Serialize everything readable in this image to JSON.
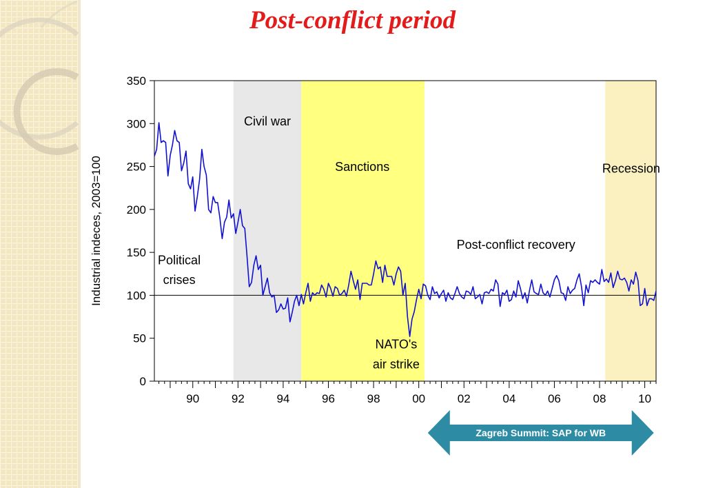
{
  "slide": {
    "title": "Post-conflict period"
  },
  "chart_data": {
    "type": "line",
    "ylabel": "Industrial indeces, 2003=100",
    "ylim": [
      0,
      350
    ],
    "yticks": [
      0,
      50,
      100,
      150,
      200,
      250,
      300,
      350
    ],
    "xlim": [
      1988.3,
      2010.5
    ],
    "xticks": [
      1990,
      1992,
      1994,
      1996,
      1998,
      2000,
      2002,
      2004,
      2006,
      2008,
      2010
    ],
    "xtick_labels": [
      "90",
      "92",
      "94",
      "96",
      "98",
      "00",
      "02",
      "04",
      "06",
      "08",
      "10"
    ],
    "reference_line": 100,
    "periods": [
      {
        "name": "Civil war",
        "start": 1991.8,
        "end": 1994.8,
        "color": "#e8e8e8"
      },
      {
        "name": "Sanctions",
        "start": 1994.8,
        "end": 2000.25,
        "color": "#ffff80"
      },
      {
        "name": "Recession",
        "start": 2008.25,
        "end": 2010.5,
        "color": "#faf0c0"
      }
    ],
    "annotations": [
      {
        "text": "Political",
        "x": 1989.4,
        "y": 136
      },
      {
        "text": "crises",
        "x": 1989.4,
        "y": 113
      },
      {
        "text": "Civil war",
        "x": 1993.3,
        "y": 298
      },
      {
        "text": "Sanctions",
        "x": 1997.5,
        "y": 245
      },
      {
        "text": "Recession",
        "x": 2009.4,
        "y": 243
      },
      {
        "text": "Post-conflict recovery",
        "x": 2004.3,
        "y": 154
      },
      {
        "text": "NATO's",
        "x": 1999.0,
        "y": 38
      },
      {
        "text": "air strike",
        "x": 1999.0,
        "y": 15
      }
    ],
    "series": [
      {
        "color": "#1010d0",
        "points": [
          [
            1988.3,
            262
          ],
          [
            1988.4,
            270
          ],
          [
            1988.5,
            301
          ],
          [
            1988.6,
            278
          ],
          [
            1988.7,
            280
          ],
          [
            1988.8,
            278
          ],
          [
            1988.9,
            239
          ],
          [
            1989.0,
            263
          ],
          [
            1989.1,
            275
          ],
          [
            1989.2,
            292
          ],
          [
            1989.3,
            280
          ],
          [
            1989.4,
            278
          ],
          [
            1989.5,
            245
          ],
          [
            1989.6,
            254
          ],
          [
            1989.7,
            268
          ],
          [
            1989.8,
            230
          ],
          [
            1989.9,
            224
          ],
          [
            1990.0,
            238
          ],
          [
            1990.1,
            198
          ],
          [
            1990.2,
            215
          ],
          [
            1990.3,
            235
          ],
          [
            1990.4,
            270
          ],
          [
            1990.5,
            250
          ],
          [
            1990.6,
            240
          ],
          [
            1990.7,
            200
          ],
          [
            1990.8,
            196
          ],
          [
            1990.9,
            215
          ],
          [
            1991.0,
            208
          ],
          [
            1991.1,
            208
          ],
          [
            1991.2,
            190
          ],
          [
            1991.3,
            166
          ],
          [
            1991.4,
            185
          ],
          [
            1991.5,
            191
          ],
          [
            1991.6,
            211
          ],
          [
            1991.7,
            190
          ],
          [
            1991.8,
            195
          ],
          [
            1991.9,
            172
          ],
          [
            1992.0,
            185
          ],
          [
            1992.1,
            200
          ],
          [
            1992.2,
            181
          ],
          [
            1992.3,
            178
          ],
          [
            1992.4,
            145
          ],
          [
            1992.5,
            110
          ],
          [
            1992.6,
            115
          ],
          [
            1992.7,
            135
          ],
          [
            1992.8,
            146
          ],
          [
            1992.9,
            130
          ],
          [
            1993.0,
            135
          ],
          [
            1993.1,
            100
          ],
          [
            1993.2,
            110
          ],
          [
            1993.3,
            120
          ],
          [
            1993.4,
            103
          ],
          [
            1993.5,
            98
          ],
          [
            1993.6,
            100
          ],
          [
            1993.7,
            80
          ],
          [
            1993.8,
            83
          ],
          [
            1993.9,
            90
          ],
          [
            1994.0,
            84
          ],
          [
            1994.1,
            85
          ],
          [
            1994.2,
            97
          ],
          [
            1994.3,
            69
          ],
          [
            1994.4,
            80
          ],
          [
            1994.5,
            93
          ],
          [
            1994.6,
            100
          ],
          [
            1994.7,
            88
          ],
          [
            1994.8,
            101
          ],
          [
            1994.9,
            90
          ],
          [
            1995.0,
            103
          ],
          [
            1995.1,
            114
          ],
          [
            1995.2,
            93
          ],
          [
            1995.3,
            103
          ],
          [
            1995.4,
            100
          ],
          [
            1995.5,
            103
          ],
          [
            1995.6,
            102
          ],
          [
            1995.7,
            112
          ],
          [
            1995.8,
            107
          ],
          [
            1995.9,
            98
          ],
          [
            1996.0,
            114
          ],
          [
            1996.1,
            108
          ],
          [
            1996.2,
            99
          ],
          [
            1996.3,
            110
          ],
          [
            1996.4,
            108
          ],
          [
            1996.5,
            100
          ],
          [
            1996.6,
            102
          ],
          [
            1996.7,
            106
          ],
          [
            1996.8,
            99
          ],
          [
            1996.9,
            112
          ],
          [
            1997.0,
            128
          ],
          [
            1997.1,
            117
          ],
          [
            1997.2,
            107
          ],
          [
            1997.3,
            118
          ],
          [
            1997.4,
            95
          ],
          [
            1997.5,
            114
          ],
          [
            1997.6,
            114
          ],
          [
            1997.7,
            114
          ],
          [
            1997.8,
            112
          ],
          [
            1997.9,
            112
          ],
          [
            1998.0,
            125
          ],
          [
            1998.1,
            140
          ],
          [
            1998.2,
            131
          ],
          [
            1998.3,
            133
          ],
          [
            1998.4,
            115
          ],
          [
            1998.5,
            135
          ],
          [
            1998.6,
            122
          ],
          [
            1998.7,
            122
          ],
          [
            1998.8,
            122
          ],
          [
            1998.9,
            112
          ],
          [
            1999.0,
            125
          ],
          [
            1999.1,
            133
          ],
          [
            1999.2,
            128
          ],
          [
            1999.3,
            100
          ],
          [
            1999.4,
            114
          ],
          [
            1999.5,
            75
          ],
          [
            1999.6,
            52
          ],
          [
            1999.7,
            72
          ],
          [
            1999.8,
            81
          ],
          [
            1999.9,
            95
          ],
          [
            2000.0,
            107
          ],
          [
            2000.1,
            96
          ],
          [
            2000.2,
            113
          ],
          [
            2000.3,
            111
          ],
          [
            2000.4,
            100
          ],
          [
            2000.5,
            95
          ],
          [
            2000.6,
            110
          ],
          [
            2000.7,
            102
          ],
          [
            2000.8,
            104
          ],
          [
            2000.9,
            97
          ],
          [
            2001.0,
            102
          ],
          [
            2001.1,
            106
          ],
          [
            2001.2,
            93
          ],
          [
            2001.3,
            103
          ],
          [
            2001.4,
            97
          ],
          [
            2001.5,
            95
          ],
          [
            2001.6,
            102
          ],
          [
            2001.7,
            110
          ],
          [
            2001.8,
            102
          ],
          [
            2001.9,
            98
          ],
          [
            2002.0,
            96
          ],
          [
            2002.1,
            105
          ],
          [
            2002.2,
            104
          ],
          [
            2002.3,
            101
          ],
          [
            2002.4,
            110
          ],
          [
            2002.5,
            96
          ],
          [
            2002.6,
            98
          ],
          [
            2002.7,
            101
          ],
          [
            2002.8,
            90
          ],
          [
            2002.9,
            103
          ],
          [
            2003.0,
            104
          ],
          [
            2003.1,
            102
          ],
          [
            2003.2,
            107
          ],
          [
            2003.3,
            105
          ],
          [
            2003.4,
            118
          ],
          [
            2003.5,
            113
          ],
          [
            2003.6,
            87
          ],
          [
            2003.7,
            103
          ],
          [
            2003.8,
            101
          ],
          [
            2003.9,
            106
          ],
          [
            2004.0,
            93
          ],
          [
            2004.1,
            95
          ],
          [
            2004.2,
            105
          ],
          [
            2004.3,
            98
          ],
          [
            2004.4,
            117
          ],
          [
            2004.5,
            108
          ],
          [
            2004.6,
            96
          ],
          [
            2004.7,
            103
          ],
          [
            2004.8,
            91
          ],
          [
            2004.9,
            106
          ],
          [
            2005.0,
            118
          ],
          [
            2005.1,
            104
          ],
          [
            2005.2,
            102
          ],
          [
            2005.3,
            101
          ],
          [
            2005.4,
            113
          ],
          [
            2005.5,
            103
          ],
          [
            2005.6,
            100
          ],
          [
            2005.7,
            105
          ],
          [
            2005.8,
            98
          ],
          [
            2005.9,
            108
          ],
          [
            2006.0,
            118
          ],
          [
            2006.1,
            123
          ],
          [
            2006.2,
            117
          ],
          [
            2006.3,
            103
          ],
          [
            2006.4,
            102
          ],
          [
            2006.5,
            94
          ],
          [
            2006.6,
            110
          ],
          [
            2006.7,
            102
          ],
          [
            2006.8,
            106
          ],
          [
            2006.9,
            108
          ],
          [
            2007.0,
            118
          ],
          [
            2007.1,
            125
          ],
          [
            2007.2,
            110
          ],
          [
            2007.3,
            88
          ],
          [
            2007.4,
            112
          ],
          [
            2007.5,
            103
          ],
          [
            2007.6,
            117
          ],
          [
            2007.7,
            115
          ],
          [
            2007.8,
            118
          ],
          [
            2007.9,
            115
          ],
          [
            2008.0,
            113
          ],
          [
            2008.1,
            130
          ],
          [
            2008.2,
            116
          ],
          [
            2008.3,
            119
          ],
          [
            2008.4,
            115
          ],
          [
            2008.5,
            126
          ],
          [
            2008.6,
            109
          ],
          [
            2008.7,
            117
          ],
          [
            2008.8,
            128
          ],
          [
            2008.9,
            119
          ],
          [
            2009.0,
            118
          ],
          [
            2009.1,
            120
          ],
          [
            2009.2,
            115
          ],
          [
            2009.3,
            105
          ],
          [
            2009.4,
            118
          ],
          [
            2009.5,
            113
          ],
          [
            2009.6,
            127
          ],
          [
            2009.7,
            117
          ],
          [
            2009.8,
            88
          ],
          [
            2009.9,
            90
          ],
          [
            2010.0,
            108
          ],
          [
            2010.1,
            88
          ],
          [
            2010.2,
            96
          ],
          [
            2010.3,
            96
          ],
          [
            2010.4,
            94
          ],
          [
            2010.5,
            105
          ]
        ]
      }
    ]
  },
  "arrow": {
    "label": "Zagreb Summit: SAP for WB",
    "start": 2000.4,
    "end": 2010.4,
    "color": "#2d8ca4"
  }
}
